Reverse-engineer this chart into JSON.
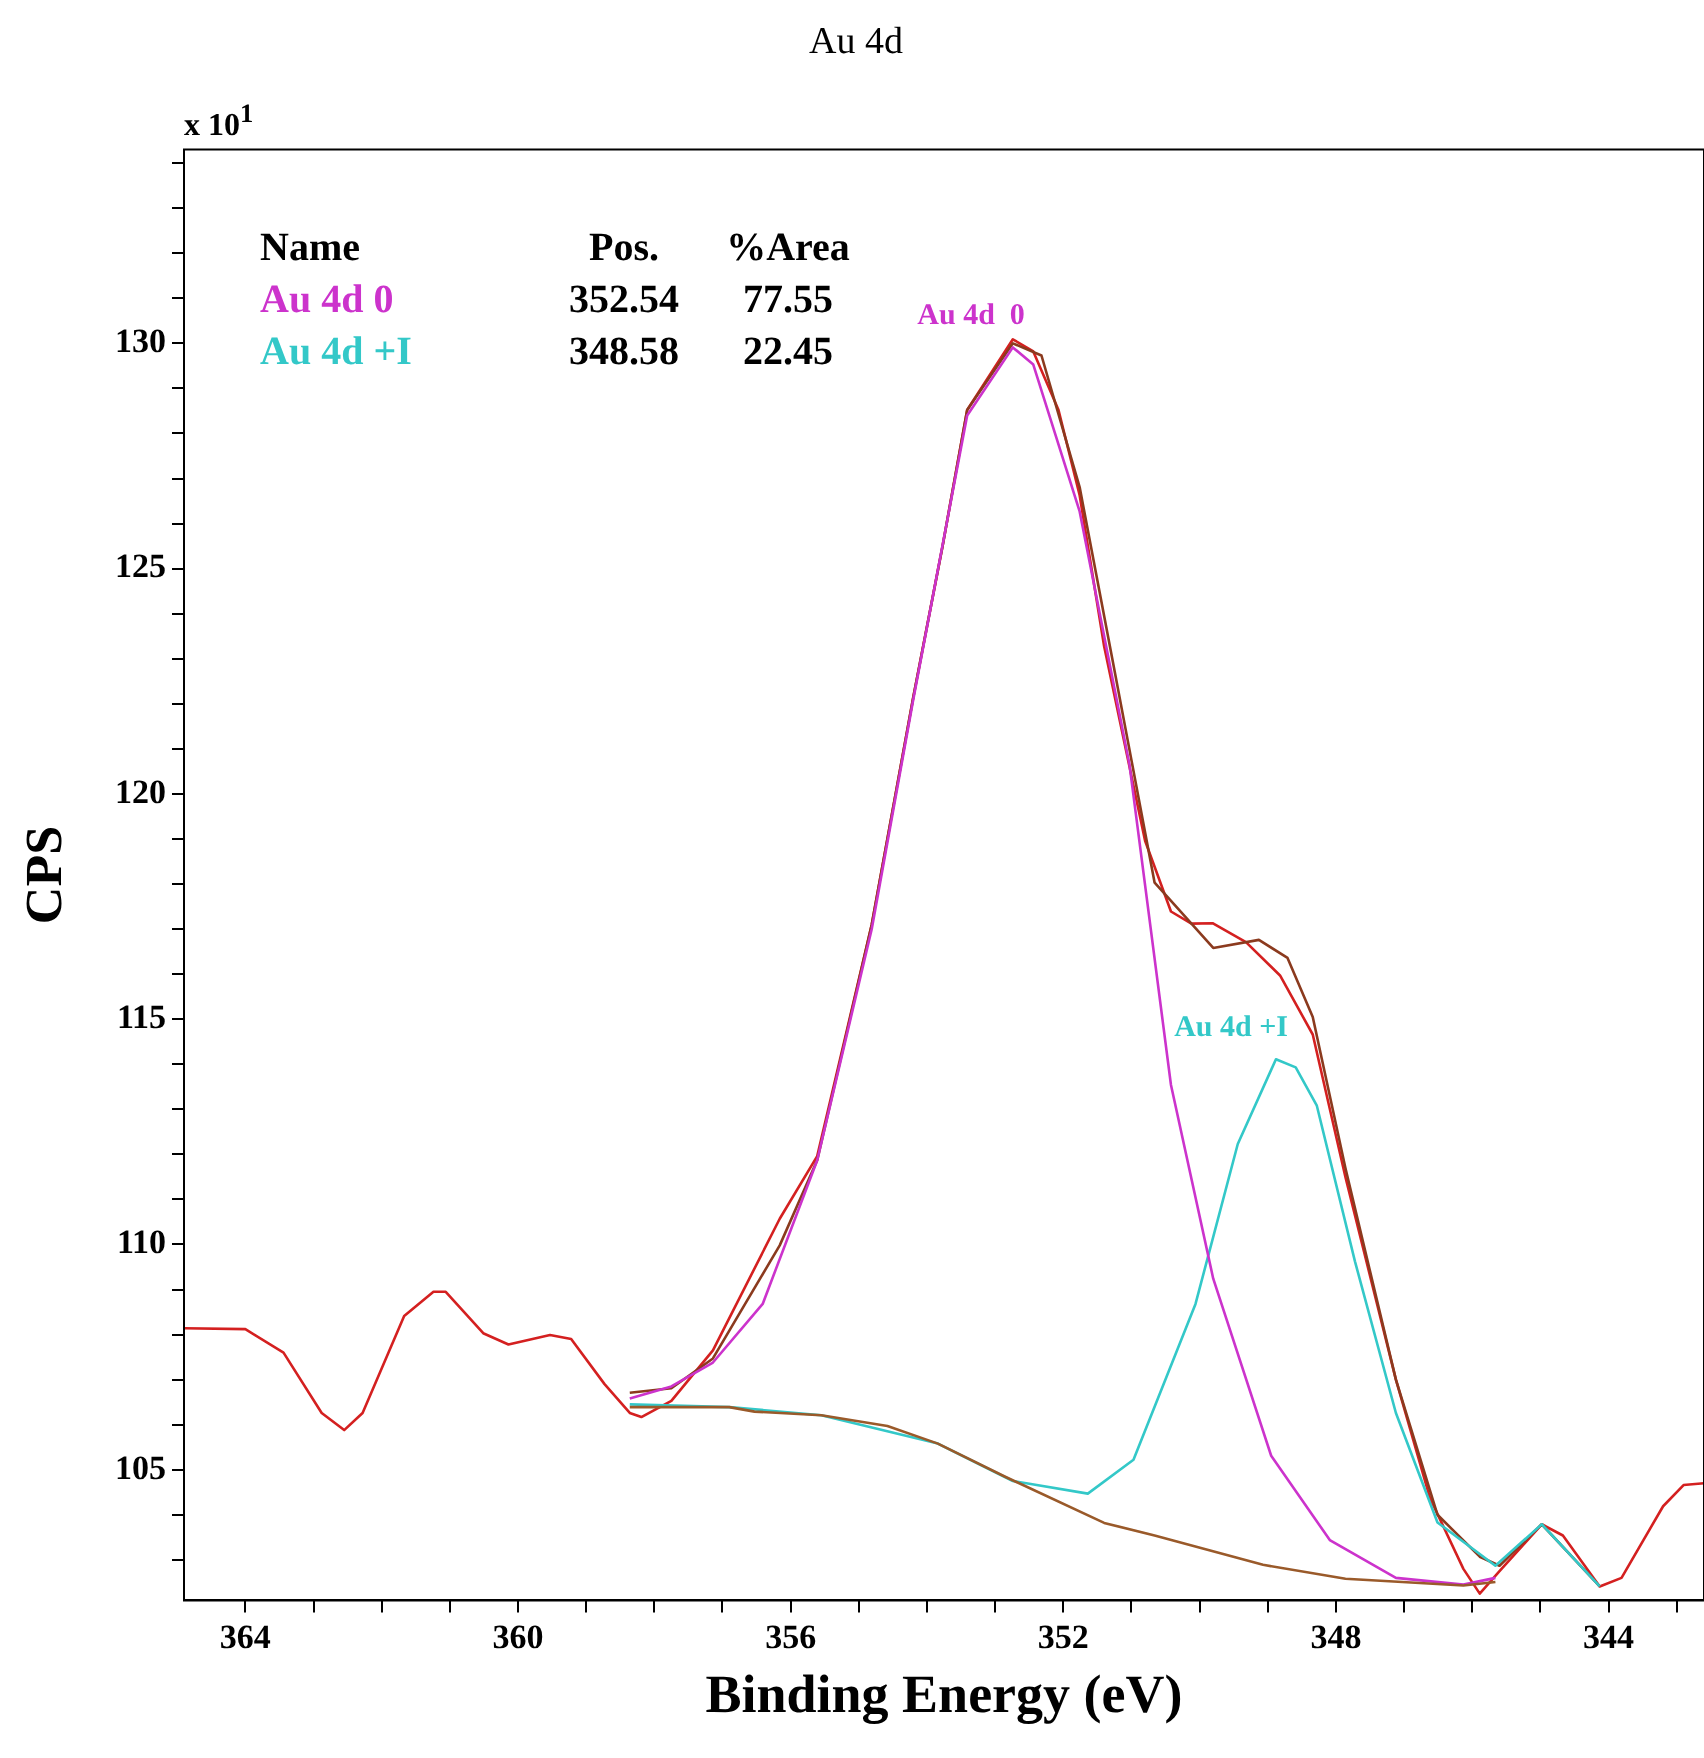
{
  "chart_data": {
    "type": "line",
    "title": "Au 4d",
    "xlabel": "Binding Energy (eV)",
    "ylabel": "CPS",
    "annotations": [
      "x 10$^{1}$",
      "Name",
      "Pos.",
      "%Area",
      "352.54",
      "77.55",
      "348.58",
      "22.45"
    ],
    "xlim": [
      364.9,
      342.6
    ],
    "ylim": [
      102.1,
      134.3
    ],
    "xticks": [
      {
        "value": 343,
        "label": null
      },
      344,
      {
        "value": 345,
        "label": null
      },
      {
        "value": 346,
        "label": null
      },
      {
        "value": 347,
        "label": null
      },
      348,
      {
        "value": 349,
        "label": null
      },
      {
        "value": 350,
        "label": null
      },
      {
        "value": 351,
        "label": null
      },
      352,
      {
        "value": 353,
        "label": null
      },
      {
        "value": 354,
        "label": null
      },
      {
        "value": 355,
        "label": null
      },
      356,
      {
        "value": 357,
        "label": null
      },
      {
        "value": 358,
        "label": null
      },
      {
        "value": 359,
        "label": null
      },
      360,
      {
        "value": 361,
        "label": null
      },
      {
        "value": 362,
        "label": null
      },
      {
        "value": 363,
        "label": null
      },
      364
    ],
    "yticks": [
      {
        "value": 103,
        "label": null
      },
      {
        "value": 104,
        "label": null
      },
      105,
      {
        "value": 106,
        "label": null
      },
      {
        "value": 107,
        "label": null
      },
      {
        "value": 108,
        "label": null
      },
      {
        "value": 109,
        "label": null
      },
      110,
      {
        "value": 111,
        "label": null
      },
      {
        "value": 112,
        "label": null
      },
      {
        "value": 113,
        "label": null
      },
      {
        "value": 114,
        "label": null
      },
      115,
      {
        "value": 116,
        "label": null
      },
      {
        "value": 117,
        "label": null
      },
      {
        "value": 118,
        "label": null
      },
      {
        "value": 119,
        "label": null
      },
      120,
      {
        "value": 121,
        "label": null
      },
      {
        "value": 122,
        "label": null
      },
      {
        "value": 123,
        "label": null
      },
      {
        "value": 124,
        "label": null
      },
      125,
      {
        "value": 126,
        "label": null
      },
      {
        "value": 127,
        "label": null
      },
      {
        "value": 128,
        "label": null
      },
      {
        "value": 129,
        "label": null
      },
      130,
      {
        "value": 131,
        "label": null
      },
      {
        "value": 132,
        "label": null
      },
      {
        "value": 133,
        "label": null
      },
      {
        "value": 134,
        "label": null
      }
    ],
    "grid": false,
    "legend": false,
    "marker": "none",
    "line_style": "solid",
    "series": [
      {
        "color": "#9a5a2a",
        "x": [
          358.36,
          356.9,
          356.53,
          355.55,
          354.58,
          353.84,
          352.86,
          351.4,
          350.66,
          349.07,
          347.86,
          346.13,
          345.66
        ],
        "values": [
          106.39,
          106.39,
          106.29,
          106.21,
          105.97,
          105.58,
          104.85,
          103.82,
          103.54,
          102.89,
          102.58,
          102.43,
          102.51
        ]
      },
      {
        "name": "Au 4d  0",
        "color": "#cc33cc",
        "x": [
          358.36,
          357.75,
          357.14,
          356.41,
          355.61,
          354.81,
          354.2,
          353.41,
          352.74,
          352.44,
          351.76,
          351.03,
          350.42,
          349.8,
          348.95,
          348.09,
          347.12,
          346.13,
          345.66
        ],
        "values": [
          106.58,
          106.85,
          107.38,
          108.68,
          111.87,
          117.0,
          122.1,
          128.4,
          129.91,
          129.53,
          126.27,
          120.66,
          113.54,
          109.24,
          105.31,
          103.44,
          102.6,
          102.45,
          102.6
        ]
      },
      {
        "name": "Au 4d +I",
        "color": "#33c8c8",
        "x": [
          358.36,
          356.9,
          355.55,
          353.84,
          352.74,
          351.64,
          350.97,
          350.06,
          349.44,
          348.88,
          348.59,
          348.28,
          347.72,
          347.12,
          346.51,
          345.66,
          344.98,
          344.13
        ],
        "values": [
          106.45,
          106.39,
          106.21,
          105.58,
          104.75,
          104.47,
          105.22,
          108.68,
          112.23,
          114.11,
          113.93,
          113.08,
          109.62,
          106.26,
          103.83,
          102.87,
          103.79,
          102.41
        ]
      },
      {
        "color": "#8b3a1e",
        "x": [
          358.36,
          357.75,
          357.14,
          356.16,
          355.61,
          354.81,
          354.2,
          353.77,
          353.41,
          352.74,
          352.32,
          351.76,
          351.27,
          350.66,
          349.8,
          349.13,
          348.71,
          348.34,
          347.86,
          347.12,
          346.51,
          345.89,
          345.6,
          344.98,
          344.13
        ],
        "values": [
          106.71,
          106.81,
          107.47,
          109.98,
          111.87,
          117.1,
          122.15,
          125.51,
          128.52,
          130.0,
          129.73,
          126.81,
          122.91,
          118.03,
          116.58,
          116.76,
          116.36,
          115.05,
          111.69,
          107.0,
          104.0,
          103.07,
          102.87,
          103.79,
          102.41
        ]
      },
      {
        "color": "#d42020",
        "x": [
          364.9,
          364.0,
          363.44,
          362.88,
          362.55,
          362.28,
          361.67,
          361.24,
          361.06,
          360.51,
          360.14,
          359.53,
          359.22,
          358.73,
          358.36,
          358.19,
          357.75,
          357.14,
          356.16,
          355.61,
          354.81,
          354.2,
          353.77,
          353.41,
          352.74,
          352.44,
          352.07,
          351.76,
          351.4,
          350.8,
          350.42,
          350.12,
          349.81,
          349.32,
          348.82,
          348.34,
          347.86,
          347.12,
          346.62,
          346.13,
          345.89,
          345.6,
          344.98,
          344.67,
          344.13,
          343.81,
          343.2,
          342.9,
          342.6
        ],
        "values": [
          108.14,
          108.12,
          107.6,
          106.26,
          105.88,
          106.26,
          108.41,
          108.95,
          108.95,
          108.03,
          107.78,
          107.99,
          107.9,
          106.9,
          106.26,
          106.17,
          106.53,
          107.65,
          110.57,
          111.96,
          117.1,
          122.15,
          125.51,
          128.52,
          130.09,
          129.82,
          128.52,
          126.63,
          123.27,
          118.96,
          117.39,
          117.12,
          117.13,
          116.71,
          115.97,
          114.66,
          111.49,
          107.0,
          104.37,
          102.8,
          102.25,
          102.75,
          103.79,
          103.54,
          102.41,
          102.6,
          104.19,
          104.66,
          104.7
        ]
      }
    ]
  }
}
